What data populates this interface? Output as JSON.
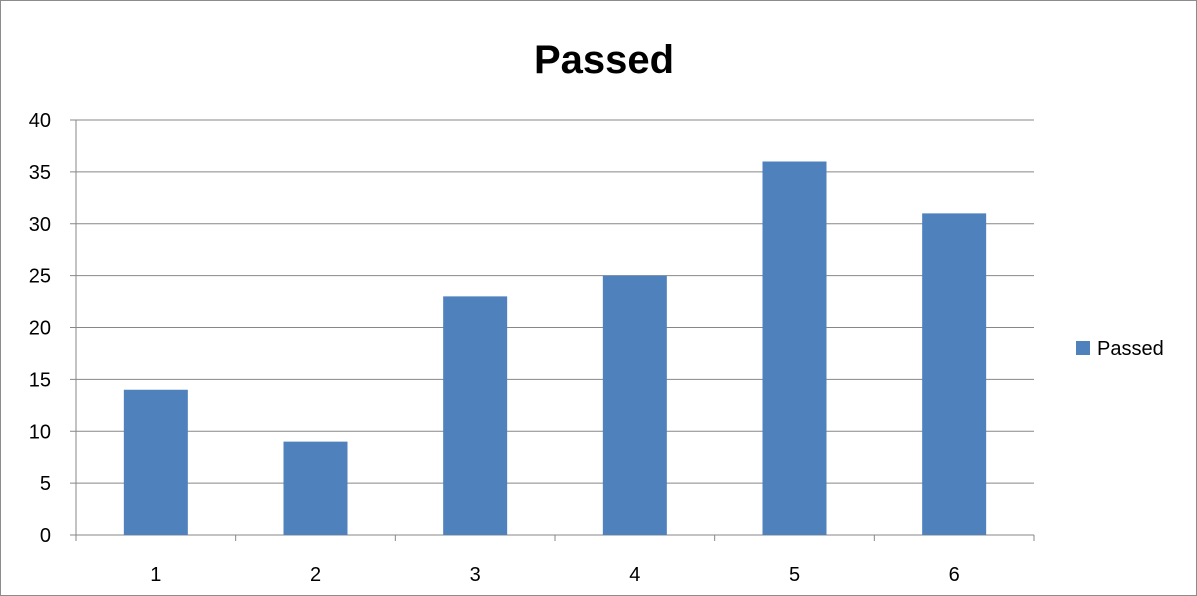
{
  "chart_data": {
    "type": "bar",
    "title": "Passed",
    "categories": [
      "1",
      "2",
      "3",
      "4",
      "5",
      "6"
    ],
    "series": [
      {
        "name": "Passed",
        "values": [
          14,
          9,
          23,
          25,
          36,
          31
        ],
        "color": "#4f81bd"
      }
    ],
    "yticks": [
      "0",
      "5",
      "10",
      "15",
      "20",
      "25",
      "30",
      "35",
      "40"
    ],
    "ylim": [
      0,
      40
    ],
    "xlabel": "",
    "ylabel": "",
    "grid": true,
    "legend_position": "right"
  }
}
